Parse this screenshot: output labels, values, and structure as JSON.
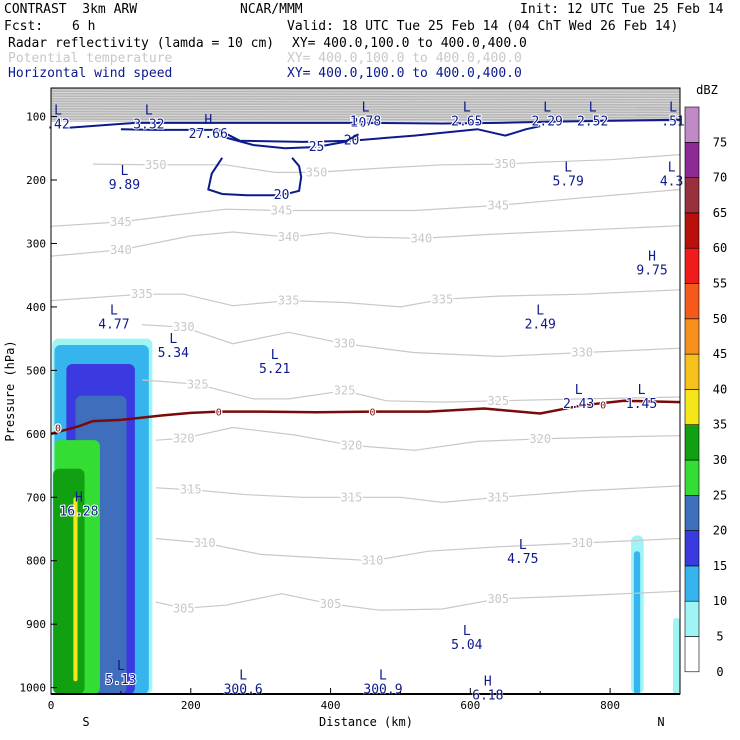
{
  "header": {
    "model": "CONTRAST  3km ARW",
    "org": "NCAR/MMM",
    "init": "Init: 12 UTC Tue 25 Feb 14",
    "fcst_label": "Fcst:",
    "fcst_value": "6 h",
    "valid": "Valid: 18 UTC Tue 25 Feb 14 (04 ChT Wed 26 Feb 14)",
    "fields": [
      {
        "name": "Radar reflectivity (lamda = 10 cm)",
        "xy": "XY= 400.0,100.0 to 400.0,400.0"
      },
      {
        "name": "Potential temperature",
        "xy": "XY= 400.0,100.0 to 400.0,400.0"
      },
      {
        "name": "Horizontal wind speed",
        "xy": "XY= 400.0,100.0 to 400.0,400.0"
      }
    ]
  },
  "colors": {
    "reflectivity_field": "#000000",
    "theta_field": "#c8c8c8",
    "wind_field": "#0c1a8c",
    "freezing_level": "#7a0a0a",
    "terrain": "#000000"
  },
  "chart_data": {
    "type": "vertical-cross-section",
    "xlabel": "Distance (km)",
    "ylabel": "Pressure (hPa)",
    "xlim": [
      0,
      900
    ],
    "ylim": [
      1010,
      55
    ],
    "x_ticks": [
      0,
      200,
      400,
      600,
      800
    ],
    "y_ticks": [
      100,
      200,
      300,
      400,
      500,
      600,
      700,
      800,
      900,
      1000
    ],
    "x_end_labels": {
      "left": "S",
      "right": "N"
    },
    "colorbar": {
      "units": "dBZ",
      "levels": [
        0,
        5,
        10,
        15,
        20,
        25,
        30,
        35,
        40,
        45,
        50,
        55,
        60,
        65,
        70,
        75
      ],
      "colors": [
        "#ffffff",
        "#9ff4f4",
        "#36b4ee",
        "#3a3ae0",
        "#3e6ebc",
        "#33dd33",
        "#11a011",
        "#f5e61a",
        "#f7c11c",
        "#f7901c",
        "#f55a1c",
        "#f01c1c",
        "#b9100e",
        "#98303e",
        "#8d2a96",
        "#c08ac6"
      ]
    },
    "theta_contours": [
      {
        "label": "350",
        "points": [
          [
            60,
            175
          ],
          [
            150,
            176
          ],
          [
            250,
            176
          ],
          [
            320,
            188
          ],
          [
            380,
            188
          ],
          [
            460,
            182
          ],
          [
            560,
            176
          ],
          [
            650,
            175
          ],
          [
            700,
            172
          ],
          [
            800,
            168
          ],
          [
            900,
            160
          ]
        ]
      },
      {
        "label": "345",
        "points": [
          [
            0,
            273
          ],
          [
            100,
            266
          ],
          [
            180,
            255
          ],
          [
            250,
            246
          ],
          [
            330,
            248
          ],
          [
            420,
            248
          ],
          [
            520,
            248
          ],
          [
            640,
            240
          ],
          [
            760,
            228
          ],
          [
            900,
            215
          ]
        ]
      },
      {
        "label": "340",
        "points": [
          [
            0,
            320
          ],
          [
            100,
            310
          ],
          [
            200,
            288
          ],
          [
            260,
            282
          ],
          [
            340,
            290
          ],
          [
            400,
            283
          ],
          [
            450,
            290
          ],
          [
            530,
            292
          ],
          [
            620,
            286
          ],
          [
            740,
            280
          ],
          [
            900,
            272
          ]
        ]
      },
      {
        "label": "335",
        "points": [
          [
            0,
            390
          ],
          [
            130,
            380
          ],
          [
            190,
            380
          ],
          [
            260,
            398
          ],
          [
            340,
            390
          ],
          [
            420,
            393
          ],
          [
            500,
            400
          ],
          [
            560,
            388
          ],
          [
            640,
            383
          ],
          [
            760,
            380
          ],
          [
            900,
            373
          ]
        ]
      },
      {
        "label": "330",
        "points": [
          [
            130,
            428
          ],
          [
            190,
            432
          ],
          [
            260,
            458
          ],
          [
            340,
            440
          ],
          [
            420,
            458
          ],
          [
            520,
            472
          ],
          [
            640,
            478
          ],
          [
            760,
            472
          ],
          [
            900,
            465
          ]
        ]
      },
      {
        "label": "325",
        "points": [
          [
            130,
            515
          ],
          [
            210,
            522
          ],
          [
            290,
            545
          ],
          [
            340,
            545
          ],
          [
            420,
            532
          ],
          [
            480,
            548
          ],
          [
            560,
            550
          ],
          [
            640,
            548
          ],
          [
            760,
            545
          ],
          [
            900,
            542
          ]
        ]
      },
      {
        "label": "320",
        "points": [
          [
            150,
            610
          ],
          [
            190,
            607
          ],
          [
            260,
            590
          ],
          [
            350,
            602
          ],
          [
            430,
            618
          ],
          [
            520,
            626
          ],
          [
            610,
            612
          ],
          [
            700,
            608
          ],
          [
            800,
            605
          ],
          [
            900,
            603
          ]
        ]
      },
      {
        "label": "315",
        "points": [
          [
            150,
            685
          ],
          [
            200,
            688
          ],
          [
            280,
            696
          ],
          [
            360,
            700
          ],
          [
            430,
            700
          ],
          [
            500,
            700
          ],
          [
            560,
            708
          ],
          [
            640,
            700
          ],
          [
            760,
            690
          ],
          [
            900,
            682
          ]
        ]
      },
      {
        "label": "310",
        "points": [
          [
            150,
            765
          ],
          [
            220,
            772
          ],
          [
            300,
            790
          ],
          [
            380,
            795
          ],
          [
            460,
            800
          ],
          [
            540,
            785
          ],
          [
            640,
            778
          ],
          [
            760,
            772
          ],
          [
            900,
            765
          ]
        ]
      },
      {
        "label": "305",
        "points": [
          [
            150,
            865
          ],
          [
            190,
            875
          ],
          [
            250,
            870
          ],
          [
            330,
            852
          ],
          [
            400,
            868
          ],
          [
            470,
            878
          ],
          [
            560,
            876
          ],
          [
            640,
            860
          ],
          [
            760,
            855
          ],
          [
            900,
            848
          ]
        ]
      }
    ],
    "wind_contours": [
      {
        "label": "20",
        "points": [
          [
            20,
            118
          ],
          [
            120,
            110
          ],
          [
            200,
            110
          ],
          [
            320,
            110
          ],
          [
            440,
            110
          ],
          [
            560,
            111
          ],
          [
            640,
            110
          ],
          [
            720,
            108
          ],
          [
            900,
            105
          ]
        ]
      },
      {
        "label": "20",
        "points": [
          [
            100,
            120
          ],
          [
            150,
            121
          ],
          [
            240,
            121
          ],
          [
            270,
            138
          ],
          [
            360,
            140
          ],
          [
            430,
            138
          ],
          [
            520,
            130
          ],
          [
            610,
            120
          ],
          [
            650,
            130
          ],
          [
            680,
            120
          ],
          [
            700,
            115
          ]
        ]
      },
      {
        "label": "20",
        "points": [
          [
            245,
            165
          ],
          [
            230,
            190
          ],
          [
            225,
            215
          ],
          [
            245,
            222
          ],
          [
            280,
            224
          ],
          [
            330,
            224
          ],
          [
            355,
            217
          ],
          [
            358,
            195
          ],
          [
            355,
            178
          ],
          [
            345,
            165
          ]
        ]
      },
      {
        "label": "25",
        "points": [
          [
            240,
            130
          ],
          [
            290,
            145
          ],
          [
            335,
            150
          ],
          [
            380,
            148
          ],
          [
            420,
            140
          ],
          [
            440,
            128
          ]
        ]
      }
    ],
    "freezing_level": {
      "label": "0",
      "points": [
        [
          0,
          600
        ],
        [
          40,
          588
        ],
        [
          60,
          580
        ],
        [
          100,
          578
        ],
        [
          160,
          571
        ],
        [
          200,
          567
        ],
        [
          240,
          565
        ],
        [
          300,
          565
        ],
        [
          380,
          566
        ],
        [
          460,
          565
        ],
        [
          540,
          565
        ],
        [
          620,
          560
        ],
        [
          700,
          568
        ],
        [
          760,
          555
        ],
        [
          820,
          548
        ],
        [
          900,
          550
        ]
      ]
    },
    "terrain_pressure": 1010,
    "reflectivity_cells": [
      {
        "dbz": 5,
        "x0": 2,
        "x1": 145,
        "p_top": 450,
        "p_bottom": 1010
      },
      {
        "dbz": 10,
        "x0": 5,
        "x1": 140,
        "p_top": 460,
        "p_bottom": 1010
      },
      {
        "dbz": 15,
        "x0": 22,
        "x1": 120,
        "p_top": 490,
        "p_bottom": 1010
      },
      {
        "dbz": 20,
        "x0": 35,
        "x1": 108,
        "p_top": 540,
        "p_bottom": 1010
      },
      {
        "dbz": 25,
        "x0": 5,
        "x1": 70,
        "p_top": 610,
        "p_bottom": 1010
      },
      {
        "dbz": 30,
        "x0": 3,
        "x1": 48,
        "p_top": 655,
        "p_bottom": 1010
      },
      {
        "dbz": 35,
        "x0": 32,
        "x1": 38,
        "p_top": 700,
        "p_bottom": 990
      },
      {
        "dbz": 5,
        "x0": 830,
        "x1": 848,
        "p_top": 760,
        "p_bottom": 1010
      },
      {
        "dbz": 10,
        "x0": 834,
        "x1": 843,
        "p_top": 785,
        "p_bottom": 1010
      },
      {
        "dbz": 5,
        "x0": 890,
        "x1": 900,
        "p_top": 890,
        "p_bottom": 1010
      }
    ],
    "annotations": [
      {
        "kind": "L",
        "value": ".42",
        "x": 10,
        "p": 100
      },
      {
        "kind": "L",
        "value": "3.32",
        "x": 140,
        "p": 100
      },
      {
        "kind": "H",
        "value": "27.66",
        "x": 225,
        "p": 115
      },
      {
        "kind": "L",
        "value": "1.78",
        "x": 450,
        "p": 95
      },
      {
        "kind": "L",
        "value": "2.65",
        "x": 595,
        "p": 95
      },
      {
        "kind": "L",
        "value": "2.29",
        "x": 710,
        "p": 95
      },
      {
        "kind": "L",
        "value": "2.52",
        "x": 775,
        "p": 95
      },
      {
        "kind": "L",
        "value": ".51",
        "x": 890,
        "p": 95
      },
      {
        "kind": "L",
        "value": "9.89",
        "x": 105,
        "p": 195
      },
      {
        "kind": "L",
        "value": "5.79",
        "x": 740,
        "p": 190
      },
      {
        "kind": "L",
        "value": "4.3",
        "x": 888,
        "p": 190
      },
      {
        "kind": "H",
        "value": "9.75",
        "x": 860,
        "p": 330
      },
      {
        "kind": "L",
        "value": "4.77",
        "x": 90,
        "p": 415
      },
      {
        "kind": "L",
        "value": "2.49",
        "x": 700,
        "p": 415
      },
      {
        "kind": "L",
        "value": "5.34",
        "x": 175,
        "p": 460
      },
      {
        "kind": "L",
        "value": "5.21",
        "x": 320,
        "p": 485
      },
      {
        "kind": "L",
        "value": "2.43",
        "x": 755,
        "p": 540
      },
      {
        "kind": "L",
        "value": "1.45",
        "x": 845,
        "p": 540
      },
      {
        "kind": "H",
        "value": "16.28",
        "x": 40,
        "p": 710
      },
      {
        "kind": "L",
        "value": "4.75",
        "x": 675,
        "p": 785
      },
      {
        "kind": "L",
        "value": "5.04",
        "x": 595,
        "p": 920
      },
      {
        "kind": "L",
        "value": "5.13",
        "x": 100,
        "p": 975
      },
      {
        "kind": "L",
        "value": "300.6",
        "x": 275,
        "p": 990
      },
      {
        "kind": "L",
        "value": "300.9",
        "x": 475,
        "p": 990
      },
      {
        "kind": "H",
        "value": "6.18",
        "x": 625,
        "p": 1000
      }
    ]
  }
}
